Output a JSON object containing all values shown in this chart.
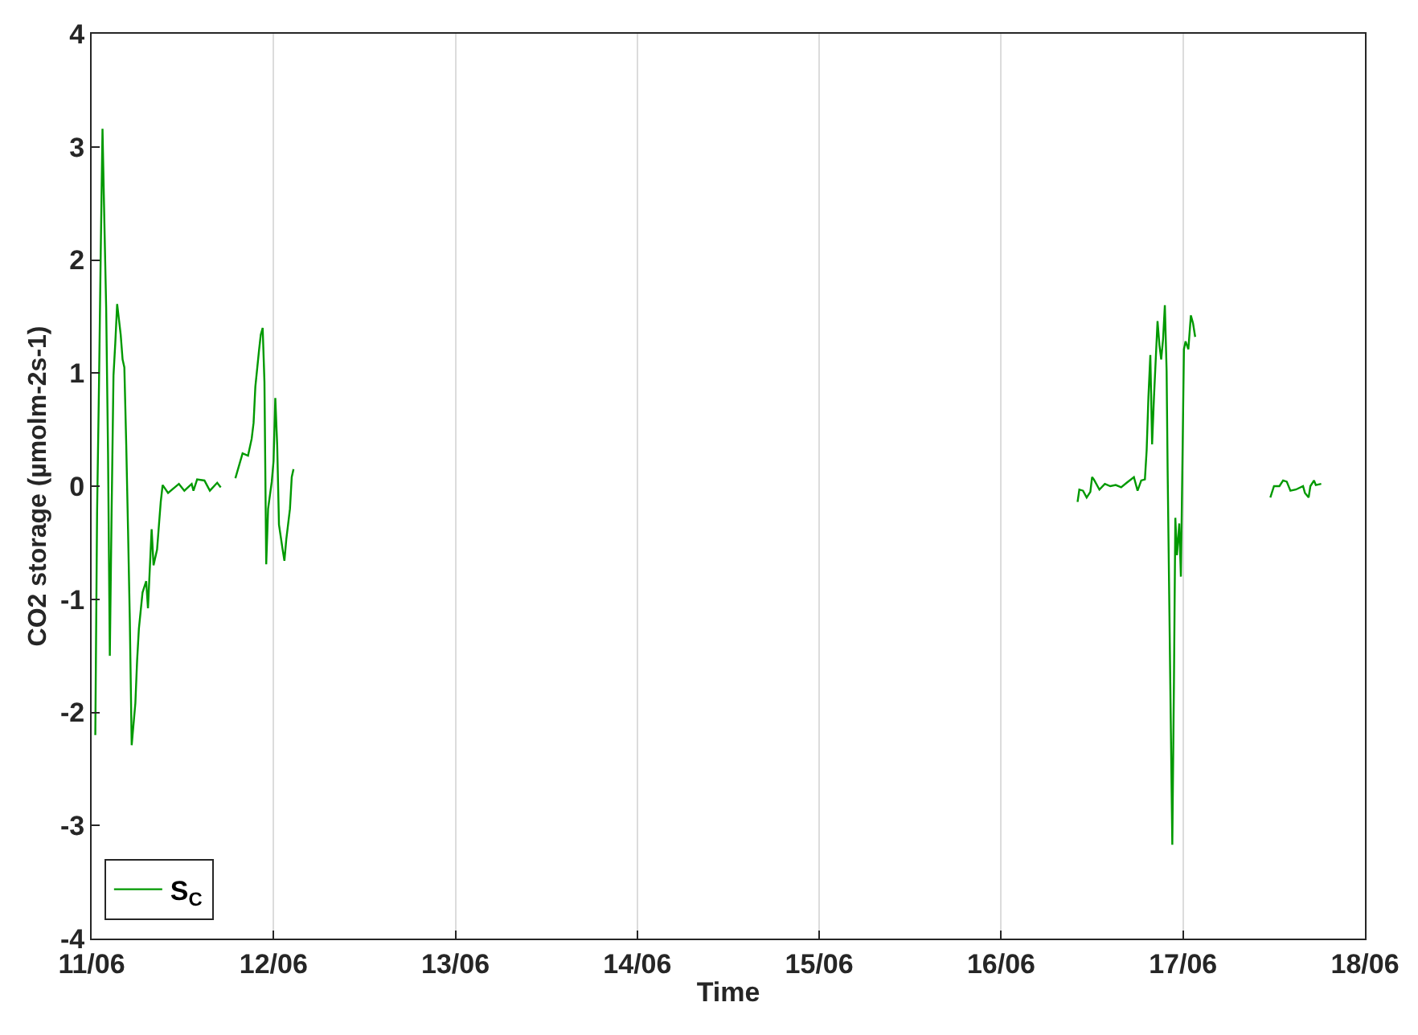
{
  "chart_data": {
    "type": "line",
    "xlabel": "Time",
    "ylabel": "CO2 storage (µmolm-2s-1)",
    "x": [
      "--06-11T00:29",
      "--06-11T00:43",
      "--06-11T00:58",
      "--06-11T01:12",
      "--06-11T01:26",
      "--06-11T01:41",
      "--06-11T01:55",
      "--06-11T02:10",
      "--06-11T02:24",
      "--06-11T02:38",
      "--06-11T02:53",
      "--06-11T03:07",
      "--06-11T03:22",
      "--06-11T03:50",
      "--06-11T04:05",
      "--06-11T04:19",
      "--06-11T04:34",
      "--06-11T04:48",
      "--06-11T05:02",
      "--06-11T05:17",
      "--06-11T05:46",
      "--06-11T06:00",
      "--06-11T06:14",
      "--06-11T06:43",
      "--06-11T07:12",
      "--06-11T07:26",
      "--06-11T07:55",
      "--06-11T08:10",
      "--06-11T08:38",
      "--06-11T08:53",
      "--06-11T09:07",
      "--06-11T09:22",
      "--06-11T10:05",
      "--06-11T11:31",
      "--06-11T12:14",
      "--06-11T13:12",
      "--06-11T13:26",
      "--06-11T13:55",
      "--06-11T14:53",
      "--06-11T15:36",
      "--06-11T16:34",
      "--06-11T17:02",
      "--06-11T18:00",
      "--06-11T18:58",
      "--06-11T19:55",
      "--06-11T20:38",
      "--06-11T21:07",
      "--06-11T21:22",
      "--06-11T21:36",
      "--06-11T22:05",
      "--06-11T22:19",
      "--06-11T22:34",
      "--06-11T22:48",
      "--06-11T23:02",
      "--06-11T23:17",
      "--06-11T23:46",
      "--06-12T00:00",
      "--06-12T00:14",
      "--06-12T00:29",
      "--06-12T00:43",
      "--06-12T01:12",
      "--06-12T01:26",
      "--06-12T01:41",
      "--06-12T02:10",
      "--06-12T02:24",
      "--06-12T02:38",
      "--06-14",
      "--06-16T10:05",
      "--06-16T10:19",
      "--06-16T10:48",
      "--06-16T11:17",
      "--06-16T11:46",
      "--06-16T12:00",
      "--06-16T12:14",
      "--06-16T12:58",
      "--06-16T13:41",
      "--06-16T14:24",
      "--06-16T15:07",
      "--06-16T15:50",
      "--06-16T16:34",
      "--06-16T17:31",
      "--06-16T18:00",
      "--06-16T18:29",
      "--06-16T18:58",
      "--06-16T19:12",
      "--06-16T19:26",
      "--06-16T19:41",
      "--06-16T19:55",
      "--06-16T20:10",
      "--06-16T20:38",
      "--06-16T20:53",
      "--06-16T21:07",
      "--06-16T21:22",
      "--06-16T21:36",
      "--06-16T21:50",
      "--06-16T21:58",
      "--06-16T22:09",
      "--06-16T22:22",
      "--06-16T22:35",
      "--06-16T22:48",
      "--06-16T22:59",
      "--06-16T23:12",
      "--06-16T23:30",
      "--06-16T23:43",
      "--06-16T23:56",
      "--06-17T00:07",
      "--06-17T00:20",
      "--06-17T00:42",
      "--06-17T01:02",
      "--06-17T01:19",
      "--06-17T01:36",
      "--06-17T07:12",
      "--06-17T11:31",
      "--06-17T12:00",
      "--06-17T12:43",
      "--06-17T13:12",
      "--06-17T13:41",
      "--06-17T14:10",
      "--06-17T14:53",
      "--06-17T15:50",
      "--06-17T16:05",
      "--06-17T16:34",
      "--06-17T16:48",
      "--06-17T17:17",
      "--06-17T17:31",
      "--06-17T18:14"
    ],
    "series": [
      {
        "name": "S$_{C}$",
        "color": "#009900",
        "values": [
          -2.2,
          -0.24,
          0.88,
          2.07,
          3.16,
          2.32,
          1.58,
          0.28,
          -1.5,
          -0.24,
          0.98,
          1.26,
          1.61,
          1.34,
          1.12,
          1.05,
          0.36,
          -0.38,
          -1.17,
          -2.29,
          -1.92,
          -1.54,
          -1.26,
          -0.94,
          -0.84,
          -1.08,
          -0.38,
          -0.7,
          -0.56,
          -0.34,
          -0.14,
          0.01,
          -0.06,
          0.02,
          -0.04,
          0.02,
          -0.04,
          0.06,
          0.05,
          -0.04,
          0.03,
          -0.01,
          null,
          0.07,
          0.29,
          0.27,
          0.42,
          0.56,
          0.88,
          1.2,
          1.34,
          1.4,
          0.92,
          -0.69,
          -0.2,
          0.04,
          0.22,
          0.78,
          0.36,
          -0.34,
          -0.56,
          -0.66,
          -0.47,
          -0.2,
          0.08,
          0.15,
          null,
          -0.14,
          -0.03,
          -0.04,
          -0.1,
          -0.05,
          0.08,
          0.06,
          -0.03,
          0.02,
          0,
          0.01,
          -0.01,
          0.03,
          0.08,
          -0.04,
          0.05,
          0.06,
          0.32,
          0.79,
          1.16,
          0.37,
          0.79,
          1.46,
          1.25,
          1.12,
          1.3,
          1.6,
          1.02,
          0.14,
          -0.84,
          -2.01,
          -3.17,
          -1.73,
          -0.28,
          -0.61,
          -0.33,
          -0.8,
          0.28,
          1.21,
          1.28,
          1.21,
          1.51,
          1.44,
          1.32,
          null,
          -0.1,
          0,
          0,
          0.05,
          0.04,
          -0.04,
          -0.03,
          0,
          -0.06,
          -0.1,
          0,
          0.05,
          0.01,
          0.02
        ]
      }
    ],
    "xlim": [
      "--06-11",
      "--06-18"
    ],
    "xticks": [
      {
        "value": "--06-11",
        "label": "11/06"
      },
      {
        "value": "--06-12",
        "label": "12/06"
      },
      {
        "value": "--06-13",
        "label": "13/06"
      },
      {
        "value": "--06-14",
        "label": "14/06"
      },
      {
        "value": "--06-15",
        "label": "15/06"
      },
      {
        "value": "--06-16",
        "label": "16/06"
      },
      {
        "value": "--06-17",
        "label": "17/06"
      },
      {
        "value": "--06-18",
        "label": "18/06"
      }
    ],
    "ylim": [
      -4,
      4
    ],
    "yticks": [
      -4,
      -3,
      -2,
      -1,
      0,
      1,
      2,
      3,
      4
    ],
    "grid": "x",
    "legend": "bottom left",
    "marker": "none",
    "line_style": "solid"
  }
}
